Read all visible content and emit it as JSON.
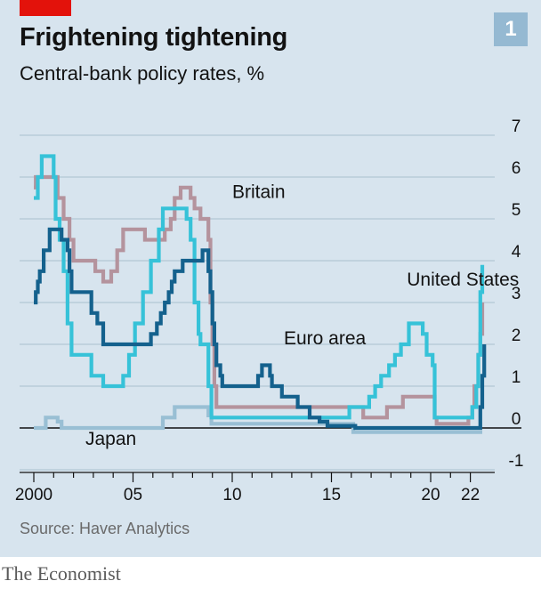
{
  "title": "Frightening tightening",
  "subtitle": "Central-bank policy rates, %",
  "badge": "1",
  "source": "Source: Haver Analytics",
  "brand": "The Economist",
  "colors": {
    "background": "#d7e4ee",
    "gridline": "#a9bfcd",
    "accent_red": "#e3120b",
    "britain": "#b4939d",
    "united_states": "#36c2d8",
    "euro_area": "#14618d",
    "japan": "#99bfd4"
  },
  "chart_data": {
    "type": "line",
    "title": "Frightening tightening",
    "subtitle": "Central-bank policy rates, %",
    "xlabel": "",
    "ylabel": "",
    "xlim": [
      1999.9,
      2022.6
    ],
    "ylim": [
      -1,
      7
    ],
    "y_ticks": [
      "7",
      "6",
      "5",
      "4",
      "3",
      "2",
      "1",
      "0",
      "-1"
    ],
    "y_tick_values": [
      7,
      6,
      5,
      4,
      3,
      2,
      1,
      0,
      -1
    ],
    "x_ticks": [
      "2000",
      "05",
      "10",
      "15",
      "20",
      "22"
    ],
    "x_tick_values": [
      2000,
      2005,
      2010,
      2015,
      2020,
      2022
    ],
    "grid": true,
    "legend": "inline labels",
    "series": [
      {
        "name": "Britain",
        "color": "#b4939d",
        "points": [
          [
            2000.0,
            5.75
          ],
          [
            2000.1,
            6.0
          ],
          [
            2001.0,
            6.0
          ],
          [
            2001.2,
            5.5
          ],
          [
            2001.5,
            5.0
          ],
          [
            2001.8,
            4.5
          ],
          [
            2002.0,
            4.0
          ],
          [
            2003.1,
            3.75
          ],
          [
            2003.5,
            3.5
          ],
          [
            2003.9,
            3.75
          ],
          [
            2004.2,
            4.25
          ],
          [
            2004.5,
            4.75
          ],
          [
            2005.6,
            4.5
          ],
          [
            2006.6,
            4.75
          ],
          [
            2006.9,
            5.0
          ],
          [
            2007.1,
            5.5
          ],
          [
            2007.4,
            5.75
          ],
          [
            2007.9,
            5.5
          ],
          [
            2008.1,
            5.25
          ],
          [
            2008.4,
            5.0
          ],
          [
            2008.8,
            4.5
          ],
          [
            2008.9,
            3.0
          ],
          [
            2009.0,
            2.0
          ],
          [
            2009.1,
            1.0
          ],
          [
            2009.2,
            0.5
          ],
          [
            2016.6,
            0.25
          ],
          [
            2017.8,
            0.5
          ],
          [
            2018.6,
            0.75
          ],
          [
            2020.2,
            0.25
          ],
          [
            2020.3,
            0.1
          ],
          [
            2021.9,
            0.25
          ],
          [
            2022.1,
            0.5
          ],
          [
            2022.2,
            1.0
          ],
          [
            2022.4,
            1.75
          ],
          [
            2022.5,
            2.25
          ],
          [
            2022.6,
            3.0
          ]
        ]
      },
      {
        "name": "United States",
        "color": "#36c2d8",
        "points": [
          [
            2000.0,
            5.5
          ],
          [
            2000.2,
            6.0
          ],
          [
            2000.4,
            6.5
          ],
          [
            2001.0,
            6.0
          ],
          [
            2001.1,
            5.0
          ],
          [
            2001.3,
            4.5
          ],
          [
            2001.5,
            3.75
          ],
          [
            2001.7,
            2.5
          ],
          [
            2001.9,
            1.75
          ],
          [
            2002.9,
            1.25
          ],
          [
            2003.5,
            1.0
          ],
          [
            2004.5,
            1.25
          ],
          [
            2004.8,
            1.75
          ],
          [
            2005.1,
            2.5
          ],
          [
            2005.5,
            3.25
          ],
          [
            2005.9,
            4.0
          ],
          [
            2006.3,
            4.75
          ],
          [
            2006.5,
            5.25
          ],
          [
            2007.7,
            5.0
          ],
          [
            2007.9,
            4.5
          ],
          [
            2008.1,
            3.0
          ],
          [
            2008.3,
            2.25
          ],
          [
            2008.4,
            2.0
          ],
          [
            2008.8,
            1.0
          ],
          [
            2008.95,
            0.25
          ],
          [
            2015.9,
            0.5
          ],
          [
            2016.9,
            0.75
          ],
          [
            2017.2,
            1.0
          ],
          [
            2017.5,
            1.25
          ],
          [
            2017.9,
            1.5
          ],
          [
            2018.2,
            1.75
          ],
          [
            2018.5,
            2.0
          ],
          [
            2018.9,
            2.5
          ],
          [
            2019.6,
            2.25
          ],
          [
            2019.8,
            1.75
          ],
          [
            2020.1,
            1.5
          ],
          [
            2020.2,
            0.25
          ],
          [
            2022.1,
            0.5
          ],
          [
            2022.3,
            1.0
          ],
          [
            2022.4,
            1.75
          ],
          [
            2022.5,
            3.25
          ],
          [
            2022.6,
            3.9
          ]
        ]
      },
      {
        "name": "Euro area",
        "color": "#14618d",
        "points": [
          [
            2000.0,
            3.0
          ],
          [
            2000.1,
            3.25
          ],
          [
            2000.2,
            3.5
          ],
          [
            2000.3,
            3.75
          ],
          [
            2000.5,
            4.25
          ],
          [
            2000.8,
            4.75
          ],
          [
            2001.4,
            4.5
          ],
          [
            2001.7,
            4.25
          ],
          [
            2001.8,
            3.75
          ],
          [
            2001.9,
            3.25
          ],
          [
            2002.9,
            2.75
          ],
          [
            2003.2,
            2.5
          ],
          [
            2003.5,
            2.0
          ],
          [
            2005.9,
            2.25
          ],
          [
            2006.2,
            2.5
          ],
          [
            2006.4,
            2.75
          ],
          [
            2006.6,
            3.0
          ],
          [
            2006.8,
            3.25
          ],
          [
            2006.95,
            3.5
          ],
          [
            2007.1,
            3.75
          ],
          [
            2007.5,
            4.0
          ],
          [
            2008.5,
            4.25
          ],
          [
            2008.8,
            3.75
          ],
          [
            2008.9,
            3.25
          ],
          [
            2009.0,
            2.5
          ],
          [
            2009.1,
            2.0
          ],
          [
            2009.2,
            1.5
          ],
          [
            2009.4,
            1.25
          ],
          [
            2009.5,
            1.0
          ],
          [
            2011.3,
            1.25
          ],
          [
            2011.5,
            1.5
          ],
          [
            2011.9,
            1.25
          ],
          [
            2012.0,
            1.0
          ],
          [
            2012.5,
            0.75
          ],
          [
            2013.3,
            0.5
          ],
          [
            2013.9,
            0.25
          ],
          [
            2014.4,
            0.15
          ],
          [
            2014.8,
            0.05
          ],
          [
            2016.2,
            0.0
          ],
          [
            2022.5,
            0.5
          ],
          [
            2022.6,
            1.25
          ],
          [
            2022.7,
            2.0
          ]
        ]
      },
      {
        "name": "Japan",
        "color": "#99bfd4",
        "points": [
          [
            2000.0,
            0.0
          ],
          [
            2000.6,
            0.25
          ],
          [
            2001.2,
            0.15
          ],
          [
            2001.4,
            0.0
          ],
          [
            2006.5,
            0.25
          ],
          [
            2007.1,
            0.5
          ],
          [
            2008.8,
            0.3
          ],
          [
            2008.95,
            0.1
          ],
          [
            2016.1,
            -0.1
          ],
          [
            2022.6,
            -0.1
          ]
        ]
      }
    ],
    "labels": [
      {
        "text": "Britain",
        "series": "Britain",
        "x": 2010.0,
        "y": 5.5
      },
      {
        "text": "United States",
        "series": "United States",
        "x": 2018.8,
        "y": 3.4
      },
      {
        "text": "Euro area",
        "series": "Euro area",
        "x": 2012.6,
        "y": 2.0
      },
      {
        "text": "Japan",
        "series": "Japan",
        "x": 2002.6,
        "y": -0.4
      }
    ]
  }
}
